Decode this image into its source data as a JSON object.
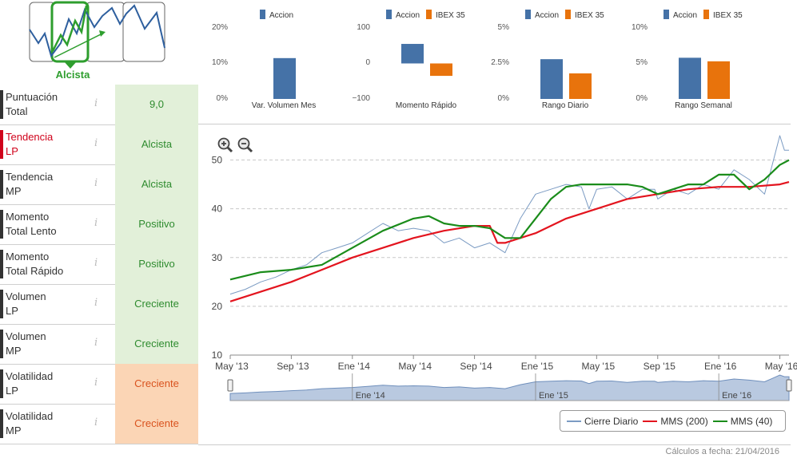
{
  "trend": {
    "label": "Alcista"
  },
  "indicators": [
    {
      "name": "Puntuación\nTotal",
      "value": "9,0",
      "status": "green",
      "highlight": false
    },
    {
      "name": "Tendencia\nLP",
      "value": "Alcista",
      "status": "green",
      "highlight": true
    },
    {
      "name": "Tendencia\nMP",
      "value": "Alcista",
      "status": "green",
      "highlight": false
    },
    {
      "name": "Momento\nTotal Lento",
      "value": "Positivo",
      "status": "green",
      "highlight": false
    },
    {
      "name": "Momento\nTotal Rápido",
      "value": "Positivo",
      "status": "green",
      "highlight": false
    },
    {
      "name": "Volumen\nLP",
      "value": "Creciente",
      "status": "green",
      "highlight": false
    },
    {
      "name": "Volumen\nMP",
      "value": "Creciente",
      "status": "green",
      "highlight": false
    },
    {
      "name": "Volatilidad\nLP",
      "value": "Creciente",
      "status": "orange",
      "highlight": false
    },
    {
      "name": "Volatilidad\nMP",
      "value": "Creciente",
      "status": "orange",
      "highlight": false
    }
  ],
  "info_glyph": "i",
  "colors": {
    "accion": "#4572a7",
    "ibex": "#e8730c",
    "cierre": "#7b9bc3",
    "mms200": "#e3141e",
    "mms40": "#1a8c1a"
  },
  "chart_data": [
    {
      "type": "bar",
      "title": "Var. Volumen Mes",
      "legend": [
        "Accion"
      ],
      "categories": [
        "Var. Volumen Mes"
      ],
      "series": [
        {
          "name": "Accion",
          "values": [
            11.5
          ]
        }
      ],
      "yticks": [
        "20%",
        "10%",
        "0%"
      ],
      "ylim": [
        0,
        20
      ]
    },
    {
      "type": "bar",
      "title": "Momento Rápido",
      "legend": [
        "Accion",
        "IBEX 35"
      ],
      "categories": [
        "Momento Rápido"
      ],
      "series": [
        {
          "name": "Accion",
          "values": [
            55
          ]
        },
        {
          "name": "IBEX 35",
          "values": [
            -35
          ]
        }
      ],
      "yticks": [
        "100",
        "0",
        "−100"
      ],
      "ylim": [
        -100,
        100
      ]
    },
    {
      "type": "bar",
      "title": "Rango Diario",
      "legend": [
        "Accion",
        "IBEX 35"
      ],
      "categories": [
        "Rango Diario"
      ],
      "series": [
        {
          "name": "Accion",
          "values": [
            2.8
          ]
        },
        {
          "name": "IBEX 35",
          "values": [
            1.8
          ]
        }
      ],
      "yticks": [
        "5%",
        "2.5%",
        "0%"
      ],
      "ylim": [
        0,
        5
      ]
    },
    {
      "type": "bar",
      "title": "Rango Semanal",
      "legend": [
        "Accion",
        "IBEX 35"
      ],
      "categories": [
        "Rango Semanal"
      ],
      "series": [
        {
          "name": "Accion",
          "values": [
            5.8
          ]
        },
        {
          "name": "IBEX 35",
          "values": [
            5.3
          ]
        }
      ],
      "yticks": [
        "10%",
        "5%",
        "0%"
      ],
      "ylim": [
        0,
        10
      ]
    },
    {
      "type": "line",
      "title": "",
      "x_ticks": [
        "May '13",
        "Sep '13",
        "Ene '14",
        "May '14",
        "Sep '14",
        "Ene '15",
        "May '15",
        "Sep '15",
        "Ene '16",
        "May '16"
      ],
      "navigator_ticks": [
        "Ene '14",
        "Ene '15",
        "Ene '16"
      ],
      "y_ticks": [
        10,
        20,
        30,
        40,
        50
      ],
      "ylim": [
        10,
        55
      ],
      "x_range_months": [
        0,
        36.6
      ],
      "series": [
        {
          "name": "Cierre Diario",
          "x": [
            0,
            1,
            2,
            3,
            4,
            5,
            6,
            7,
            8,
            9,
            10,
            11,
            12,
            13,
            14,
            15,
            16,
            17,
            18,
            19,
            20,
            21,
            22,
            23,
            23.5,
            24,
            25,
            26,
            27,
            27.8,
            28,
            29,
            30,
            31,
            32,
            33,
            34,
            35,
            35.5,
            36,
            36.3,
            36.6
          ],
          "values": [
            22.5,
            23.5,
            25,
            26,
            27.5,
            28.5,
            31,
            32,
            33,
            35,
            37,
            35.5,
            36,
            35.5,
            33,
            34,
            32,
            33,
            31,
            38,
            43,
            44,
            45,
            44.5,
            40,
            44,
            44.5,
            42,
            44,
            44,
            42,
            44,
            43,
            45,
            44,
            48,
            46,
            43,
            49,
            55,
            52,
            52
          ]
        },
        {
          "name": "MMS (200)",
          "x": [
            0,
            2,
            4,
            6,
            8,
            10,
            12,
            14,
            16,
            17,
            17.5,
            18,
            20,
            22,
            24,
            26,
            28,
            30,
            32,
            34,
            36,
            36.6
          ],
          "values": [
            21,
            23,
            25,
            27.5,
            30,
            32,
            34,
            35.5,
            36.5,
            36.5,
            33,
            33,
            35,
            38,
            40,
            42,
            43,
            44,
            44.5,
            44.5,
            45,
            45.5
          ]
        },
        {
          "name": "MMS (40)",
          "x": [
            0,
            2,
            4,
            6,
            8,
            10,
            12,
            13,
            14,
            15,
            16,
            17,
            18,
            19,
            20,
            21,
            22,
            23,
            24,
            25,
            26,
            27,
            28,
            29,
            30,
            31,
            32,
            33,
            34,
            35,
            36,
            36.6
          ],
          "values": [
            25.5,
            27,
            27.5,
            28.5,
            32,
            35.5,
            38,
            38.5,
            37,
            36.5,
            36.5,
            36,
            34,
            34,
            38,
            42,
            44.5,
            45,
            45,
            45,
            45,
            44.5,
            43,
            44,
            45,
            45,
            47,
            47,
            44,
            46,
            49,
            50
          ]
        }
      ]
    }
  ],
  "legend": {
    "cierre": "Cierre Diario",
    "mms200": "MMS (200)",
    "mms40": "MMS (40)"
  },
  "footer": {
    "calc_date": "Cálculos a fecha: 21/04/2016"
  }
}
